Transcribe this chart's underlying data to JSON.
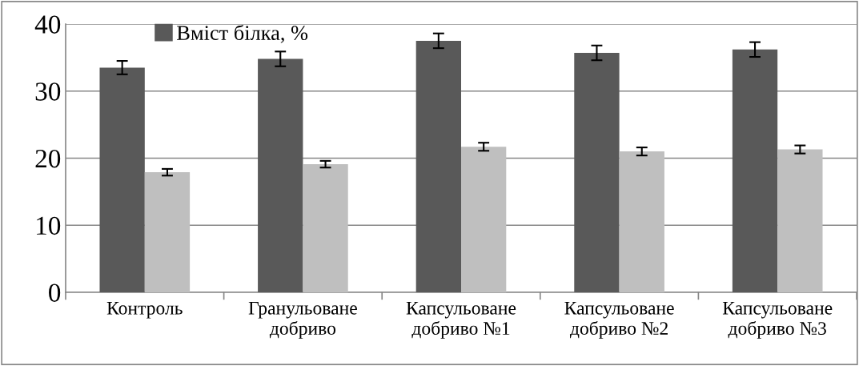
{
  "chart_data": {
    "type": "bar",
    "categories": [
      "Контроль",
      "Гранульоване\nдобриво",
      "Капсульоване\nдобриво №1",
      "Капсульоване\nдобриво №2",
      "Капсульоване\nдобриво №3"
    ],
    "series": [
      {
        "name": "Вміст білка, %",
        "color": "#595959",
        "values": [
          33.5,
          34.8,
          37.5,
          35.7,
          36.2
        ],
        "errors": [
          1.0,
          1.1,
          1.1,
          1.1,
          1.1
        ]
      },
      {
        "color": "#bfbfbf",
        "values": [
          17.9,
          19.1,
          21.7,
          21.0,
          21.3
        ],
        "errors": [
          0.5,
          0.5,
          0.6,
          0.6,
          0.6
        ]
      }
    ],
    "ylim": [
      0,
      40
    ],
    "yticks": [
      0,
      10,
      20,
      30,
      40
    ],
    "grid": "y",
    "legend": "top"
  }
}
